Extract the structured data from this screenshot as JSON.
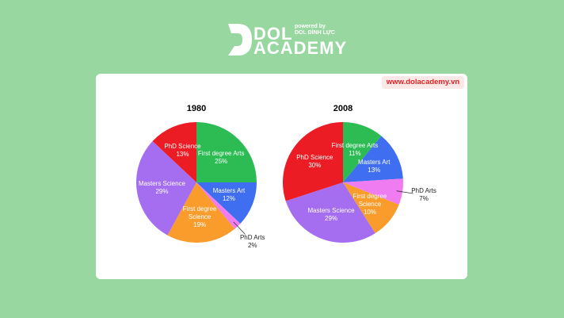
{
  "brand": {
    "name_top": "DOL",
    "name_bottom": "ACADEMY",
    "tagline": "powered by",
    "owner": "DOL ĐÌNH LỰC"
  },
  "website": "www.dolacademy.vn",
  "chart_data": [
    {
      "type": "pie",
      "title": "1980",
      "categories": [
        "First degree Arts",
        "Masters Art",
        "PhD Arts",
        "First degree Science",
        "Masters Science",
        "PhD Science"
      ],
      "values": [
        25,
        12,
        2,
        19,
        29,
        13
      ],
      "value_labels": [
        "25%",
        "12%",
        "2%",
        "19%",
        "29%",
        "13%"
      ],
      "colors": [
        "#2dbb54",
        "#3f6ff0",
        "#ef7cf0",
        "#f99c2c",
        "#a56ef0",
        "#ec1c24"
      ]
    },
    {
      "type": "pie",
      "title": "2008",
      "categories": [
        "First degree Arts",
        "Masters Art",
        "PhD Arts",
        "First degree Science",
        "Masters Science",
        "PhD Science"
      ],
      "values": [
        11,
        13,
        7,
        10,
        29,
        30
      ],
      "value_labels": [
        "11%",
        "13%",
        "7%",
        "10%",
        "29%",
        "30%"
      ],
      "colors": [
        "#2dbb54",
        "#3f6ff0",
        "#ef7cf0",
        "#f99c2c",
        "#a56ef0",
        "#ec1c24"
      ]
    }
  ]
}
